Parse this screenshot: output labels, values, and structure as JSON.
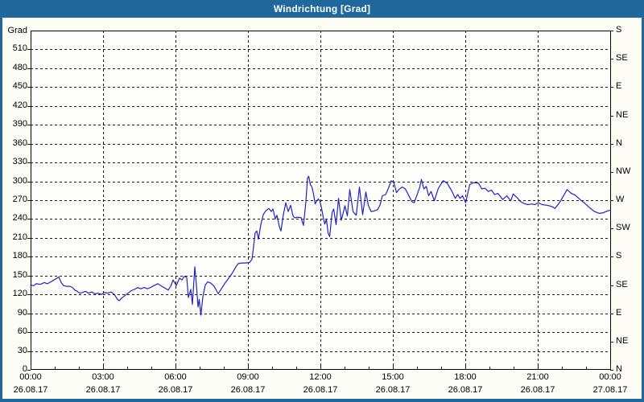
{
  "window": {
    "title": "Windrichtung [Grad]",
    "titlebar_color": "#20689c",
    "border_color": "#20689c",
    "background_color": "#fdfdf5"
  },
  "chart_data": {
    "type": "line",
    "title": "Windrichtung [Grad]",
    "ylabel_left": "Grad",
    "legend": "none",
    "grid": "dashed",
    "grid_color": "#1a1a1a",
    "frame_color": "#000000",
    "plot_bg": "#fefefa",
    "line_color": "#2121c6",
    "ylim": [
      0,
      540
    ],
    "y_left_tick_step": 30,
    "y_left_ticks": [
      0,
      30,
      60,
      90,
      120,
      150,
      180,
      210,
      240,
      270,
      300,
      330,
      360,
      390,
      420,
      450,
      480,
      510
    ],
    "y_right_ticks": [
      {
        "grad": 0,
        "label": "N"
      },
      {
        "grad": 45,
        "label": "NE"
      },
      {
        "grad": 90,
        "label": "E"
      },
      {
        "grad": 135,
        "label": "SE"
      },
      {
        "grad": 180,
        "label": "S"
      },
      {
        "grad": 225,
        "label": "SW"
      },
      {
        "grad": 270,
        "label": "W"
      },
      {
        "grad": 315,
        "label": "NW"
      },
      {
        "grad": 360,
        "label": "N"
      },
      {
        "grad": 405,
        "label": "NE"
      },
      {
        "grad": 450,
        "label": "E"
      },
      {
        "grad": 495,
        "label": "SE"
      },
      {
        "grad": 540,
        "label": "S"
      }
    ],
    "xlim_hours": [
      0,
      24
    ],
    "x_major_step_hours": 3,
    "x_minor_step_hours": 1,
    "x_ticks": [
      {
        "hour": 0,
        "time": "00:00",
        "date": "26.08.17"
      },
      {
        "hour": 3,
        "time": "03:00",
        "date": "26.08.17"
      },
      {
        "hour": 6,
        "time": "06:00",
        "date": "26.08.17"
      },
      {
        "hour": 9,
        "time": "09:00",
        "date": "26.08.17"
      },
      {
        "hour": 12,
        "time": "12:00",
        "date": "26.08.17"
      },
      {
        "hour": 15,
        "time": "15:00",
        "date": "26.08.17"
      },
      {
        "hour": 18,
        "time": "18:00",
        "date": "26.08.17"
      },
      {
        "hour": 21,
        "time": "21:00",
        "date": "26.08.17"
      },
      {
        "hour": 24,
        "time": "00:00",
        "date": "27.08.17"
      }
    ],
    "series": [
      {
        "name": "Windrichtung",
        "unit": "Grad",
        "points_time_min_value_grad": [
          [
            0,
            135
          ],
          [
            8,
            134
          ],
          [
            14,
            137
          ],
          [
            24,
            136
          ],
          [
            34,
            139
          ],
          [
            42,
            137
          ],
          [
            50,
            140
          ],
          [
            58,
            143
          ],
          [
            66,
            146
          ],
          [
            70,
            148
          ],
          [
            76,
            139
          ],
          [
            82,
            134
          ],
          [
            90,
            133
          ],
          [
            98,
            133
          ],
          [
            104,
            131
          ],
          [
            110,
            127
          ],
          [
            116,
            125
          ],
          [
            122,
            122
          ],
          [
            128,
            123
          ],
          [
            136,
            125
          ],
          [
            144,
            122
          ],
          [
            152,
            124
          ],
          [
            160,
            121
          ],
          [
            168,
            122
          ],
          [
            176,
            120
          ],
          [
            184,
            123
          ],
          [
            192,
            122
          ],
          [
            200,
            124
          ],
          [
            208,
            120
          ],
          [
            216,
            112
          ],
          [
            220,
            110
          ],
          [
            226,
            114
          ],
          [
            234,
            118
          ],
          [
            242,
            122
          ],
          [
            250,
            126
          ],
          [
            258,
            128
          ],
          [
            266,
            131
          ],
          [
            274,
            129
          ],
          [
            282,
            131
          ],
          [
            290,
            129
          ],
          [
            298,
            131
          ],
          [
            306,
            134
          ],
          [
            316,
            137
          ],
          [
            326,
            133
          ],
          [
            334,
            130
          ],
          [
            342,
            127
          ],
          [
            348,
            133
          ],
          [
            354,
            143
          ],
          [
            362,
            134
          ],
          [
            370,
            146
          ],
          [
            376,
            143
          ],
          [
            382,
            149
          ],
          [
            388,
            147
          ],
          [
            392,
            115
          ],
          [
            398,
            128
          ],
          [
            402,
            104
          ],
          [
            408,
            164
          ],
          [
            412,
            135
          ],
          [
            416,
            100
          ],
          [
            419,
            112
          ],
          [
            423,
            87
          ],
          [
            428,
            116
          ],
          [
            434,
            135
          ],
          [
            440,
            140
          ],
          [
            448,
            138
          ],
          [
            456,
            133
          ],
          [
            462,
            126
          ],
          [
            466,
            121
          ],
          [
            474,
            129
          ],
          [
            482,
            137
          ],
          [
            490,
            144
          ],
          [
            498,
            151
          ],
          [
            504,
            157
          ],
          [
            510,
            164
          ],
          [
            516,
            169
          ],
          [
            524,
            170
          ],
          [
            534,
            170
          ],
          [
            544,
            171
          ],
          [
            550,
            176
          ],
          [
            554,
            196
          ],
          [
            558,
            218
          ],
          [
            562,
            221
          ],
          [
            566,
            208
          ],
          [
            572,
            231
          ],
          [
            578,
            247
          ],
          [
            584,
            253
          ],
          [
            592,
            257
          ],
          [
            598,
            252
          ],
          [
            602,
            256
          ],
          [
            608,
            240
          ],
          [
            612,
            246
          ],
          [
            618,
            228
          ],
          [
            622,
            221
          ],
          [
            628,
            247
          ],
          [
            634,
            266
          ],
          [
            640,
            252
          ],
          [
            646,
            262
          ],
          [
            652,
            245
          ],
          [
            656,
            242
          ],
          [
            664,
            243
          ],
          [
            672,
            242
          ],
          [
            678,
            230
          ],
          [
            684,
            268
          ],
          [
            688,
            305
          ],
          [
            691,
            308
          ],
          [
            695,
            295
          ],
          [
            699,
            291
          ],
          [
            703,
            280
          ],
          [
            707,
            264
          ],
          [
            711,
            269
          ],
          [
            715,
            272
          ],
          [
            719,
            268
          ],
          [
            723,
            257
          ],
          [
            727,
            243
          ],
          [
            731,
            232
          ],
          [
            735,
            240
          ],
          [
            739,
            218
          ],
          [
            743,
            212
          ],
          [
            749,
            250
          ],
          [
            753,
            256
          ],
          [
            759,
            231
          ],
          [
            765,
            273
          ],
          [
            772,
            238
          ],
          [
            781,
            261
          ],
          [
            787,
            245
          ],
          [
            793,
            287
          ],
          [
            801,
            252
          ],
          [
            809,
            246
          ],
          [
            817,
            291
          ],
          [
            825,
            247
          ],
          [
            833,
            283
          ],
          [
            839,
            262
          ],
          [
            846,
            252
          ],
          [
            854,
            253
          ],
          [
            862,
            255
          ],
          [
            868,
            262
          ],
          [
            874,
            277
          ],
          [
            882,
            279
          ],
          [
            889,
            289
          ],
          [
            896,
            301
          ],
          [
            903,
            297
          ],
          [
            909,
            282
          ],
          [
            915,
            287
          ],
          [
            923,
            291
          ],
          [
            931,
            288
          ],
          [
            939,
            278
          ],
          [
            947,
            268
          ],
          [
            953,
            266
          ],
          [
            961,
            280
          ],
          [
            967,
            291
          ],
          [
            971,
            303
          ],
          [
            977,
            288
          ],
          [
            983,
            292
          ],
          [
            989,
            277
          ],
          [
            995,
            284
          ],
          [
            1003,
            269
          ],
          [
            1013,
            289
          ],
          [
            1025,
            301
          ],
          [
            1035,
            297
          ],
          [
            1047,
            284
          ],
          [
            1055,
            273
          ],
          [
            1061,
            279
          ],
          [
            1067,
            273
          ],
          [
            1073,
            277
          ],
          [
            1081,
            266
          ],
          [
            1091,
            295
          ],
          [
            1101,
            298
          ],
          [
            1113,
            297
          ],
          [
            1121,
            288
          ],
          [
            1129,
            289
          ],
          [
            1137,
            284
          ],
          [
            1145,
            286
          ],
          [
            1153,
            279
          ],
          [
            1161,
            281
          ],
          [
            1173,
            271
          ],
          [
            1183,
            277
          ],
          [
            1193,
            269
          ],
          [
            1199,
            280
          ],
          [
            1209,
            274
          ],
          [
            1217,
            268
          ],
          [
            1225,
            265
          ],
          [
            1235,
            263
          ],
          [
            1245,
            264
          ],
          [
            1253,
            263
          ],
          [
            1261,
            266
          ],
          [
            1271,
            263
          ],
          [
            1283,
            262
          ],
          [
            1295,
            260
          ],
          [
            1303,
            257
          ],
          [
            1315,
            267
          ],
          [
            1325,
            278
          ],
          [
            1333,
            287
          ],
          [
            1343,
            281
          ],
          [
            1353,
            278
          ],
          [
            1365,
            271
          ],
          [
            1377,
            265
          ],
          [
            1389,
            258
          ],
          [
            1401,
            252
          ],
          [
            1413,
            249
          ],
          [
            1423,
            250
          ],
          [
            1433,
            253
          ],
          [
            1440,
            254
          ]
        ]
      }
    ]
  }
}
